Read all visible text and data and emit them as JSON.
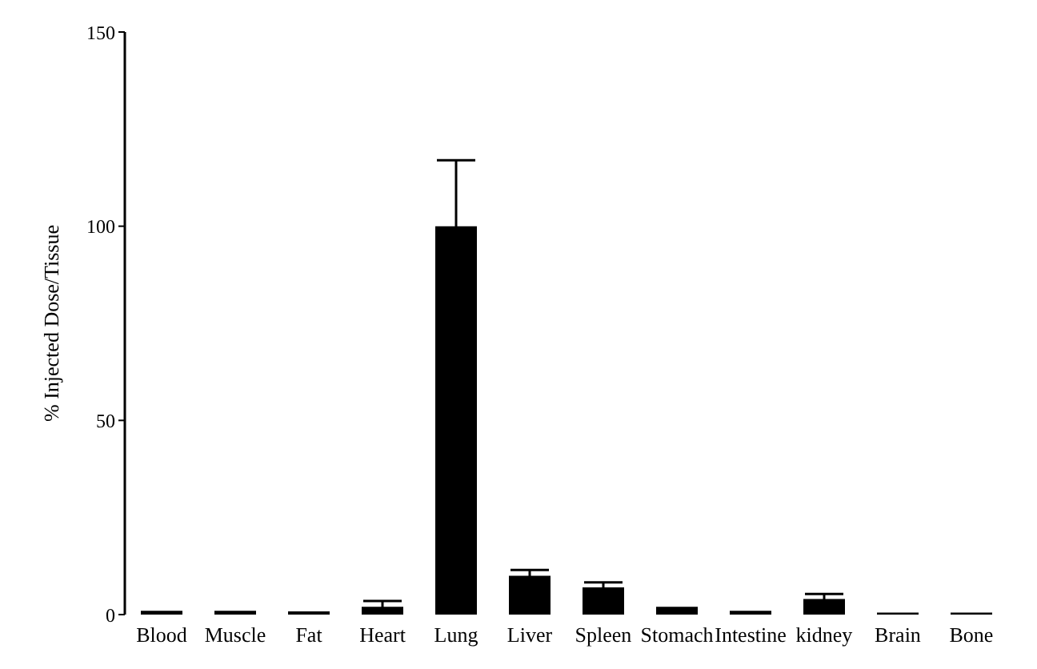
{
  "chart_data": {
    "type": "bar",
    "ylabel": "% Injected Dose/Tissue",
    "categories": [
      "Blood",
      "Muscle",
      "Fat",
      "Heart",
      "Lung",
      "Liver",
      "Spleen",
      "Stomach",
      "Intestine",
      "kidney",
      "Brain",
      "Bone"
    ],
    "values": [
      1,
      1,
      0.8,
      2,
      100,
      10,
      7,
      2,
      1,
      4,
      0.5,
      0.5
    ],
    "errors": [
      null,
      null,
      null,
      1.5,
      17,
      1.5,
      1.3,
      null,
      null,
      1.3,
      null,
      null
    ],
    "color": "#000000",
    "ylim": [
      0,
      150
    ],
    "yticks": [
      0,
      50,
      100,
      150
    ],
    "grid": false
  }
}
